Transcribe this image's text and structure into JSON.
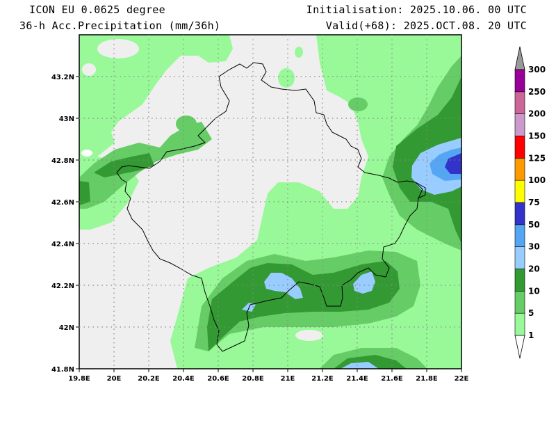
{
  "header": {
    "model": "ICON EU 0.0625 degree",
    "field": "36-h Acc.Precipitation (mm/36h)",
    "init": "Initialisation: 2025.10.06. 00 UTC",
    "valid": "Valid(+68): 2025.OCT.08. 20 UTC"
  },
  "map": {
    "lon_range": [
      19.8,
      22.0
    ],
    "lat_range": [
      41.8,
      43.4
    ],
    "x_ticks": [
      {
        "value": 19.8,
        "label": "19.8E"
      },
      {
        "value": 20.0,
        "label": "20E"
      },
      {
        "value": 20.2,
        "label": "20.2E"
      },
      {
        "value": 20.4,
        "label": "20.4E"
      },
      {
        "value": 20.6,
        "label": "20.6E"
      },
      {
        "value": 20.8,
        "label": "20.8E"
      },
      {
        "value": 21.0,
        "label": "21E"
      },
      {
        "value": 21.2,
        "label": "21.2E"
      },
      {
        "value": 21.4,
        "label": "21.4E"
      },
      {
        "value": 21.6,
        "label": "21.6E"
      },
      {
        "value": 21.8,
        "label": "21.8E"
      },
      {
        "value": 22.0,
        "label": "22E"
      }
    ],
    "y_ticks": [
      {
        "value": 41.8,
        "label": "41.8N"
      },
      {
        "value": 42.0,
        "label": "42N"
      },
      {
        "value": 42.2,
        "label": "42.2N"
      },
      {
        "value": 42.4,
        "label": "42.4N"
      },
      {
        "value": 42.6,
        "label": "42.6N"
      },
      {
        "value": 42.8,
        "label": "42.8N"
      },
      {
        "value": 43.0,
        "label": "43N"
      },
      {
        "value": 43.2,
        "label": "43.2N"
      }
    ],
    "background_color": "#efefef"
  },
  "colorbar": {
    "levels": [
      {
        "label": "1",
        "color": "#ffffff"
      },
      {
        "label": "5",
        "color": "#99f999"
      },
      {
        "label": "10",
        "color": "#66cc66"
      },
      {
        "label": "20",
        "color": "#339933"
      },
      {
        "label": "30",
        "color": "#99ccff"
      },
      {
        "label": "50",
        "color": "#55a6f2"
      },
      {
        "label": "75",
        "color": "#3333cc"
      },
      {
        "label": "100",
        "color": "#ffff00"
      },
      {
        "label": "125",
        "color": "#ff9900"
      },
      {
        "label": "150",
        "color": "#ff0000"
      },
      {
        "label": "200",
        "color": "#cc99cc"
      },
      {
        "label": "250",
        "color": "#cc6699"
      },
      {
        "label": "300",
        "color": "#990099"
      }
    ],
    "over_color": "#999999",
    "under_color": "#ffffff"
  }
}
